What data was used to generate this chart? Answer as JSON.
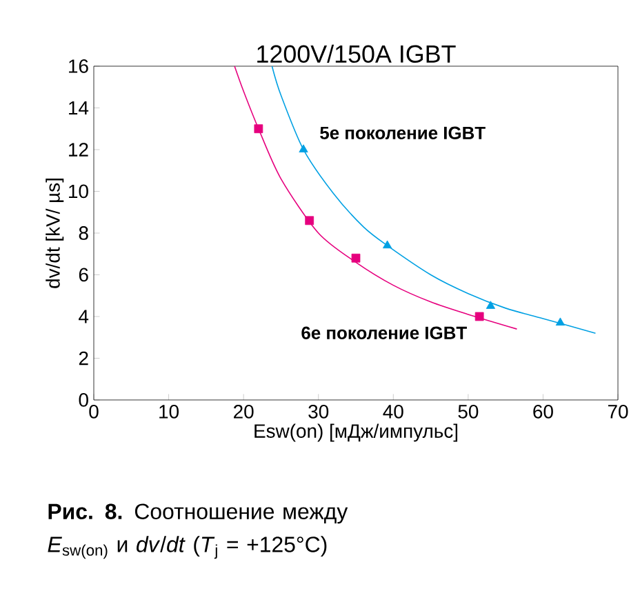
{
  "chart_data": {
    "type": "scatter",
    "title": "1200V/150A IGBT",
    "xlabel": "Esw(on) [мДж/импульс]",
    "ylabel": "dv/dt [kV/ µs]",
    "xlim": [
      0,
      70
    ],
    "ylim": [
      0,
      16
    ],
    "xticks": [
      0,
      10,
      20,
      30,
      40,
      50,
      60,
      70
    ],
    "yticks": [
      0,
      2,
      4,
      6,
      8,
      10,
      12,
      14,
      16
    ],
    "series": [
      {
        "type": "line",
        "color": "#e6007e",
        "marker": "none",
        "x": [
          18.8,
          20,
          22,
          25,
          30,
          35,
          40,
          45,
          50,
          56.5
        ],
        "values": [
          16,
          14.8,
          13,
          10.6,
          8.0,
          6.6,
          5.5,
          4.7,
          4.1,
          3.4
        ]
      },
      {
        "name": "6е поколение IGBT",
        "color": "#e6007e",
        "marker": "square",
        "x": [
          22,
          28.8,
          35,
          51.5
        ],
        "values": [
          13.0,
          8.6,
          6.8,
          4.0
        ]
      },
      {
        "type": "line",
        "color": "#00a0e3",
        "marker": "none",
        "x": [
          23.8,
          25,
          28,
          32,
          36,
          39.2,
          45,
          50,
          55,
          60,
          67
        ],
        "values": [
          16,
          14.6,
          12,
          9.9,
          8.3,
          7.4,
          6.0,
          5.1,
          4.4,
          3.9,
          3.2
        ]
      },
      {
        "name": "5е поколение IGBT",
        "color": "#00a0e3",
        "marker": "triangle",
        "x": [
          28,
          39.2,
          53,
          62.3
        ],
        "values": [
          12,
          7.4,
          4.5,
          3.7
        ]
      }
    ],
    "annotations": [
      "**Рис. 8.** Соотношение между *E*$_{sw(on)}$ и *dv*/*dt* (*T*$_{j}$ = +125°C)"
    ]
  }
}
